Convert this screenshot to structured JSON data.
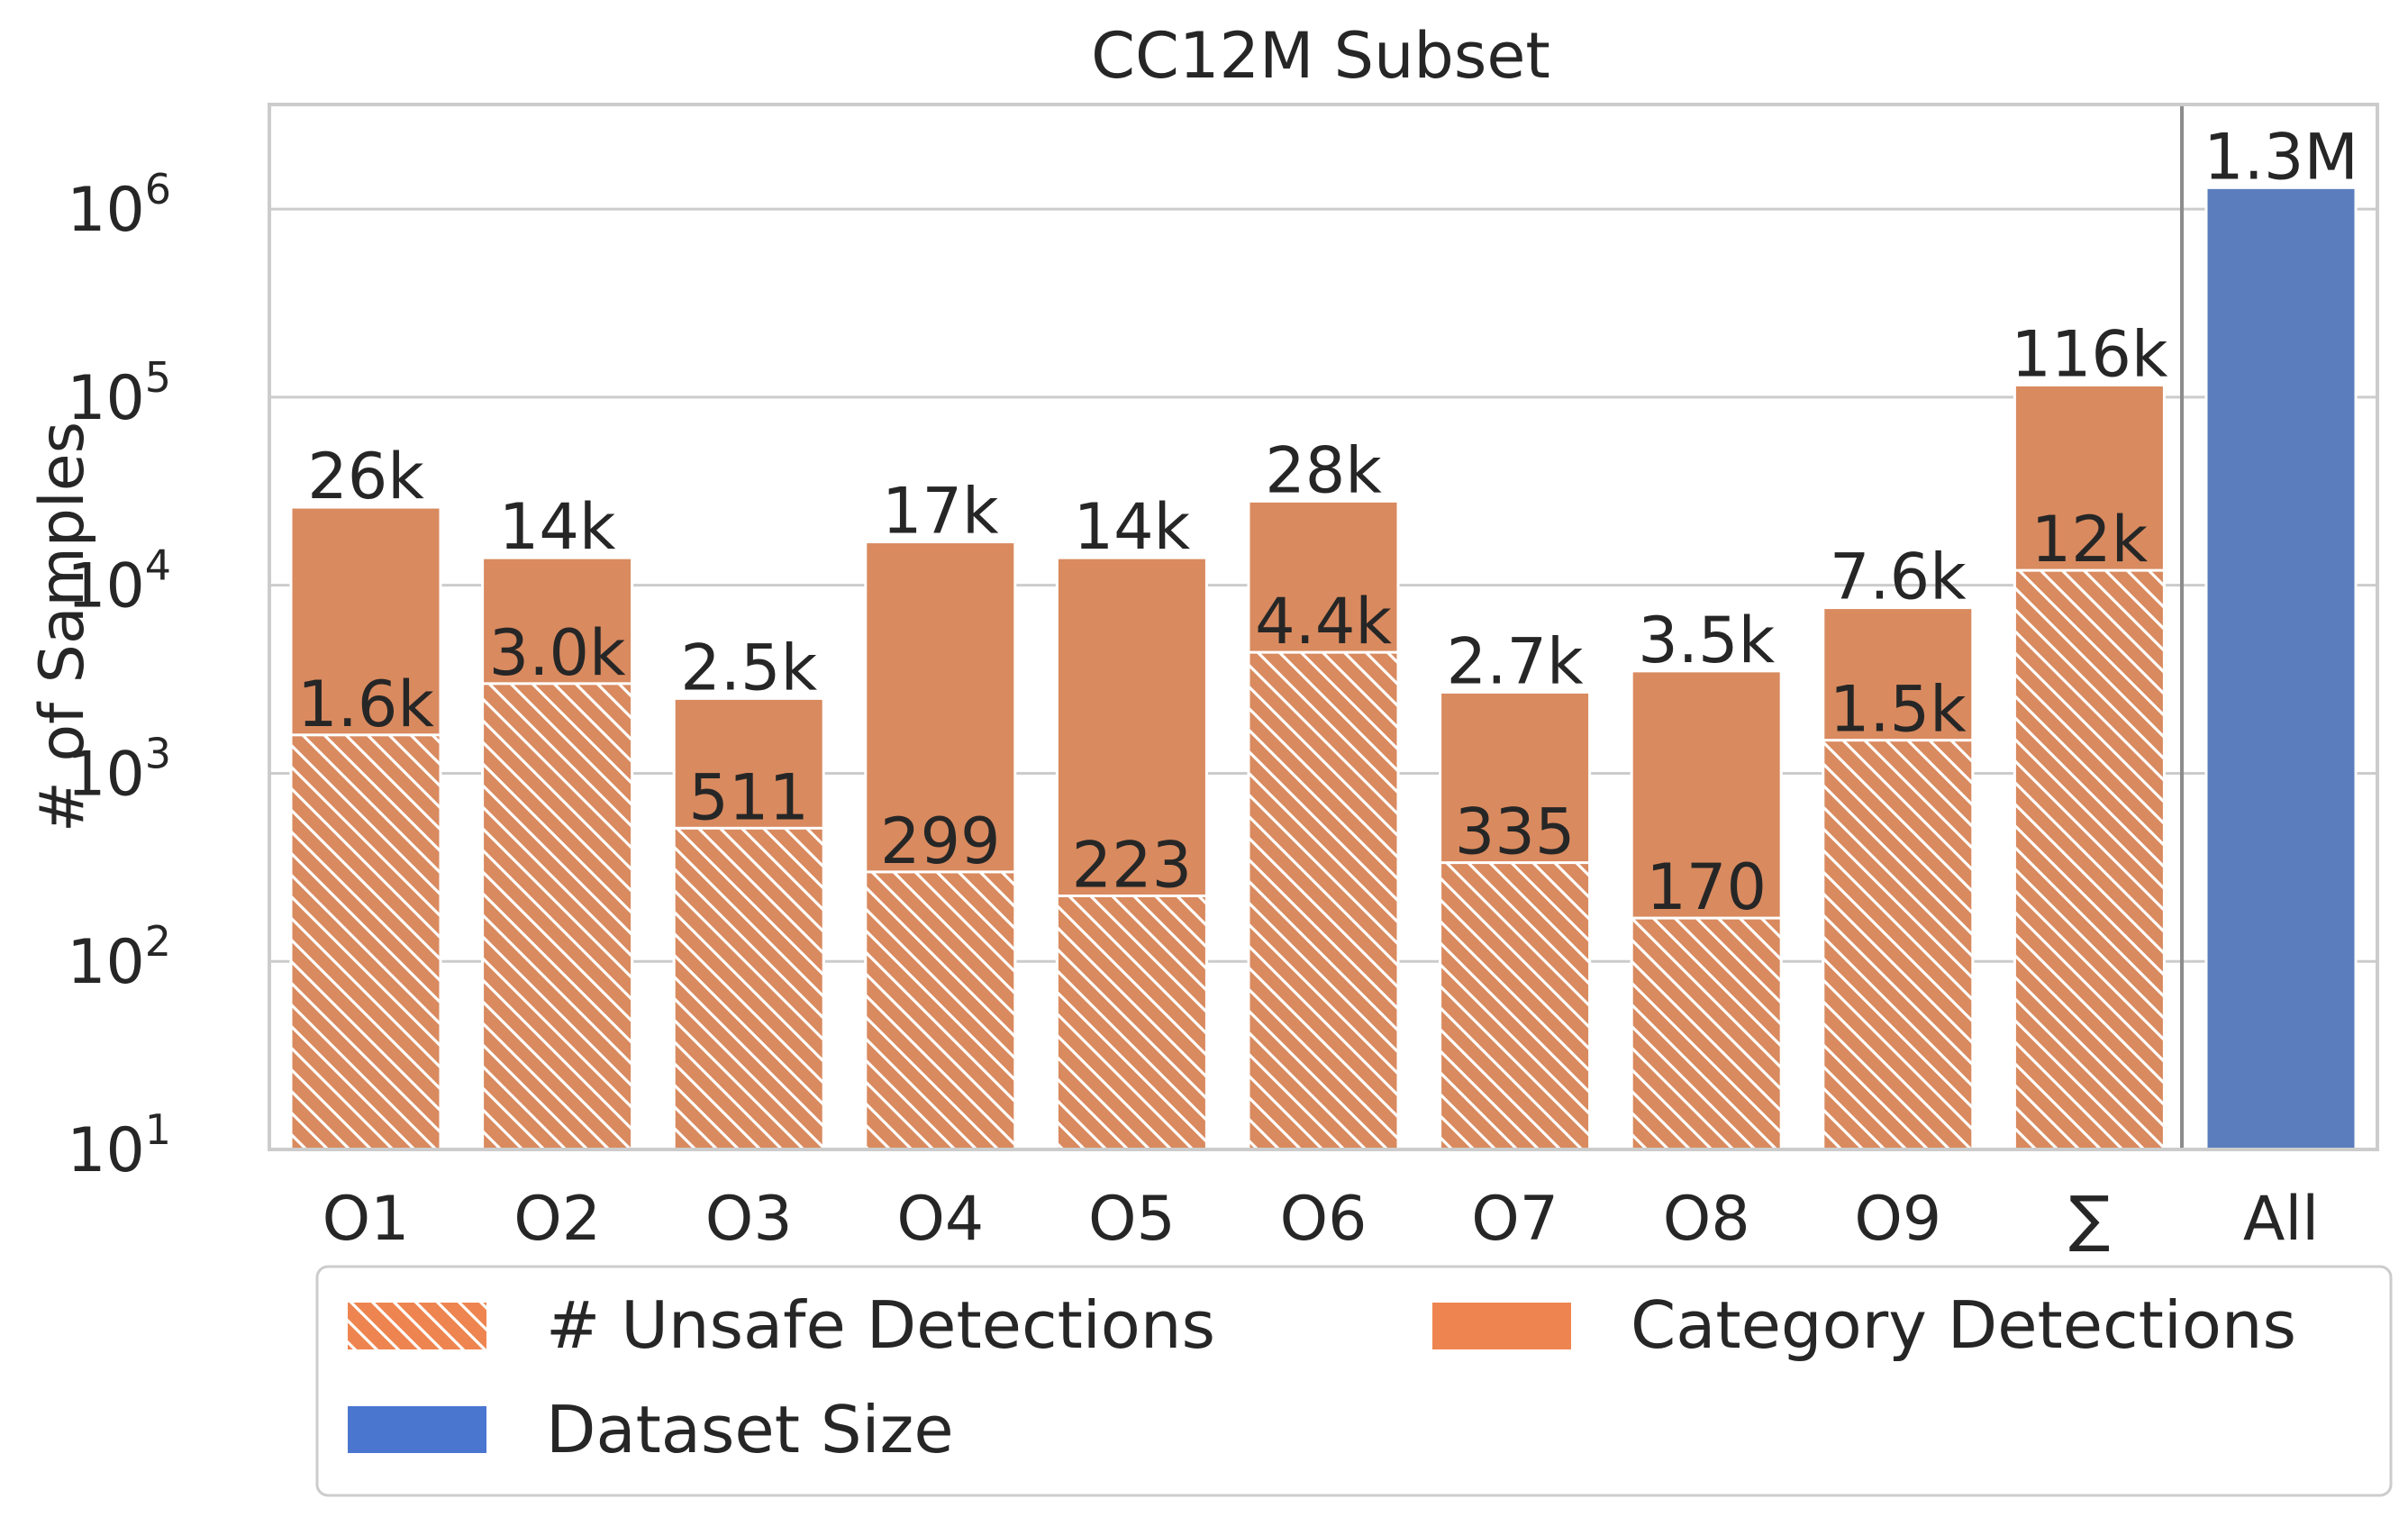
{
  "chart_data": {
    "type": "bar",
    "title": "CC12M Subset",
    "xlabel": "",
    "ylabel": "# of Samples",
    "yscale": "log",
    "ylim": [
      10,
      3600000
    ],
    "y_ticks": [
      {
        "base": "10",
        "exp": "1",
        "value": 10
      },
      {
        "base": "10",
        "exp": "2",
        "value": 100
      },
      {
        "base": "10",
        "exp": "3",
        "value": 1000
      },
      {
        "base": "10",
        "exp": "4",
        "value": 10000
      },
      {
        "base": "10",
        "exp": "5",
        "value": 100000
      },
      {
        "base": "10",
        "exp": "6",
        "value": 1000000
      }
    ],
    "grid": true,
    "categories": [
      "O1",
      "O2",
      "O3",
      "O4",
      "O5",
      "O6",
      "O7",
      "O8",
      "O9",
      "∑",
      "All"
    ],
    "series": [
      {
        "name": "Category Detections",
        "color": "#d98a5f",
        "values": [
          26000,
          14000,
          2500,
          17000,
          14000,
          28000,
          2700,
          3500,
          7600,
          116000,
          null
        ],
        "labels": [
          "26k",
          "14k",
          "2.5k",
          "17k",
          "14k",
          "28k",
          "2.7k",
          "3.5k",
          "7.6k",
          "116k",
          ""
        ]
      },
      {
        "name": "# Unsafe Detections",
        "color": "#d98a5f",
        "hatch": true,
        "values": [
          1600,
          3000,
          511,
          299,
          223,
          4400,
          335,
          170,
          1500,
          12000,
          null
        ],
        "labels": [
          "1.6k",
          "3.0k",
          "511",
          "299",
          "223",
          "4.4k",
          "335",
          "170",
          "1.5k",
          "12k",
          ""
        ]
      },
      {
        "name": "Dataset Size",
        "color": "#5b7dbe",
        "values": [
          null,
          null,
          null,
          null,
          null,
          null,
          null,
          null,
          null,
          null,
          1300000
        ],
        "labels": [
          "",
          "",
          "",
          "",
          "",
          "",
          "",
          "",
          "",
          "",
          "1.3M"
        ]
      }
    ],
    "legend": {
      "placement": "bottom",
      "items": [
        {
          "label": "# Unsafe Detections",
          "color": "#ee8550",
          "hatch": true
        },
        {
          "label": "Category Detections",
          "color": "#ee8550",
          "hatch": false
        },
        {
          "label": "Dataset Size",
          "color": "#4a76d0",
          "hatch": false
        }
      ]
    }
  }
}
